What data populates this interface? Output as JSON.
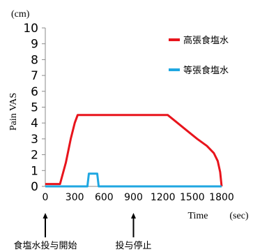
{
  "chart_data": {
    "type": "line",
    "ylabel": "Pain VAS",
    "yunit": "(cm)",
    "xlabel": "Time",
    "xunit": "(sec)",
    "ylim": [
      0,
      10
    ],
    "xlim": [
      0,
      1800
    ],
    "yticks": [
      0,
      1,
      2,
      3,
      4,
      5,
      6,
      7,
      8,
      9,
      10
    ],
    "xticks": [
      0,
      300,
      600,
      900,
      1200,
      1500,
      1800
    ],
    "grid": false,
    "legend_position": "top-right",
    "series": [
      {
        "name": "高張食塩水",
        "color": "#e8141c",
        "points": [
          [
            0,
            0.15
          ],
          [
            150,
            0.15
          ],
          [
            210,
            1.5
          ],
          [
            260,
            3.0
          ],
          [
            300,
            4.0
          ],
          [
            330,
            4.5
          ],
          [
            1250,
            4.5
          ],
          [
            1350,
            4.0
          ],
          [
            1450,
            3.5
          ],
          [
            1550,
            3.0
          ],
          [
            1650,
            2.55
          ],
          [
            1720,
            2.1
          ],
          [
            1760,
            1.6
          ],
          [
            1785,
            0.9
          ],
          [
            1800,
            0.0
          ]
        ]
      },
      {
        "name": "等張食塩水",
        "color": "#1fa7e1",
        "points": [
          [
            0,
            0
          ],
          [
            430,
            0
          ],
          [
            445,
            0.8
          ],
          [
            530,
            0.8
          ],
          [
            545,
            0
          ],
          [
            1800,
            0
          ]
        ]
      }
    ],
    "annotations": [
      {
        "text": "食塩水投与開始",
        "x": 0
      },
      {
        "text": "投与停止",
        "x": 900
      }
    ]
  }
}
